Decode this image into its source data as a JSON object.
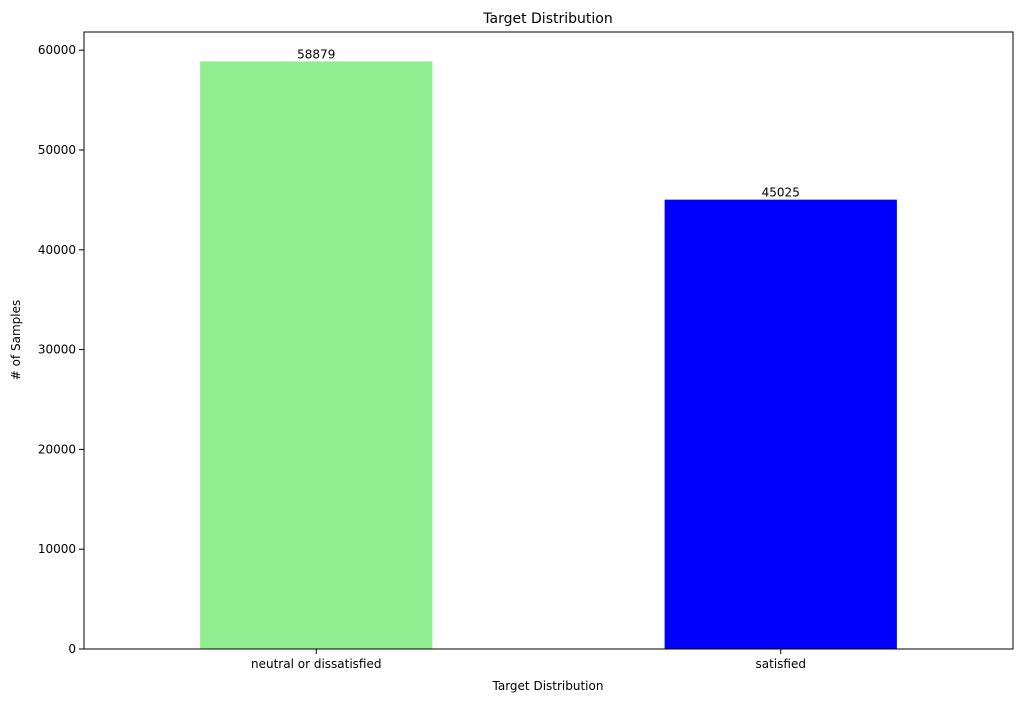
{
  "chart_data": {
    "type": "bar",
    "title": "Target Distribution",
    "xlabel": "Target Distribution",
    "ylabel": "# of Samples",
    "categories": [
      "neutral or dissatisfied",
      "satisfied"
    ],
    "values": [
      58879,
      45025
    ],
    "data_labels": [
      "58879",
      "45025"
    ],
    "colors": [
      "#90ee90",
      "#0000ff"
    ],
    "ylim": [
      0,
      61824
    ],
    "yticks": [
      0,
      10000,
      20000,
      30000,
      40000,
      50000,
      60000
    ],
    "grid": false,
    "legend": "none"
  }
}
